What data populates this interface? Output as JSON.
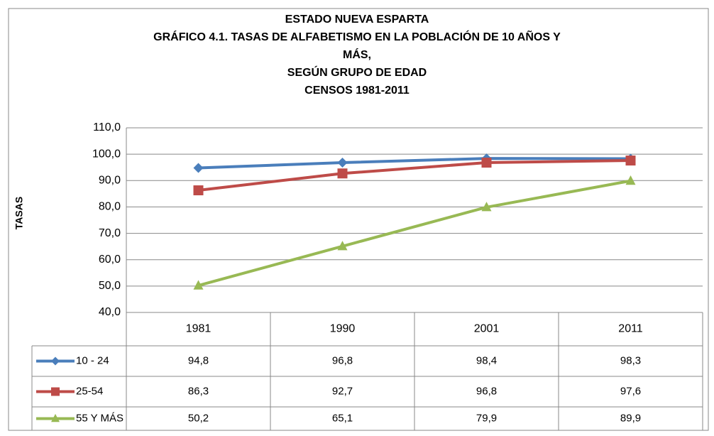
{
  "chart_data": {
    "type": "line",
    "title": [
      "ESTADO NUEVA ESPARTA",
      "GRÁFICO 4.1.  TASAS DE ALFABETISMO EN LA POBLACIÓN DE 10 AÑOS Y",
      "MÁS,",
      "SEGÚN GRUPO DE EDAD",
      "CENSOS 1981-2011"
    ],
    "y_label": "TASAS",
    "categories": [
      "1981",
      "1990",
      "2001",
      "2011"
    ],
    "series": [
      {
        "name": "10 -  24",
        "color": "#4a7ebb",
        "marker": "diamond",
        "values": [
          94.8,
          96.8,
          98.4,
          98.3
        ],
        "value_labels": [
          "94,8",
          "96,8",
          "98,4",
          "98,3"
        ]
      },
      {
        "name": "25-54",
        "color": "#be4b48",
        "marker": "square",
        "values": [
          86.3,
          92.7,
          96.8,
          97.6
        ],
        "value_labels": [
          "86,3",
          "92,7",
          "96,8",
          "97,6"
        ]
      },
      {
        "name": "55 Y MÁS",
        "color": "#98b954",
        "marker": "triangle",
        "values": [
          50.2,
          65.1,
          79.9,
          89.9
        ],
        "value_labels": [
          "50,2",
          "65,1",
          "79,9",
          "89,9"
        ]
      }
    ],
    "ylim": [
      40,
      110
    ],
    "yticks": [
      {
        "value": 40,
        "label": "40,0"
      },
      {
        "value": 50,
        "label": "50,0"
      },
      {
        "value": 60,
        "label": "60,0"
      },
      {
        "value": 70,
        "label": "70,0"
      },
      {
        "value": 80,
        "label": "80,0"
      },
      {
        "value": 90,
        "label": "90,0"
      },
      {
        "value": 100,
        "label": "100,0"
      },
      {
        "value": 110,
        "label": "110,0"
      }
    ],
    "grid": true
  }
}
